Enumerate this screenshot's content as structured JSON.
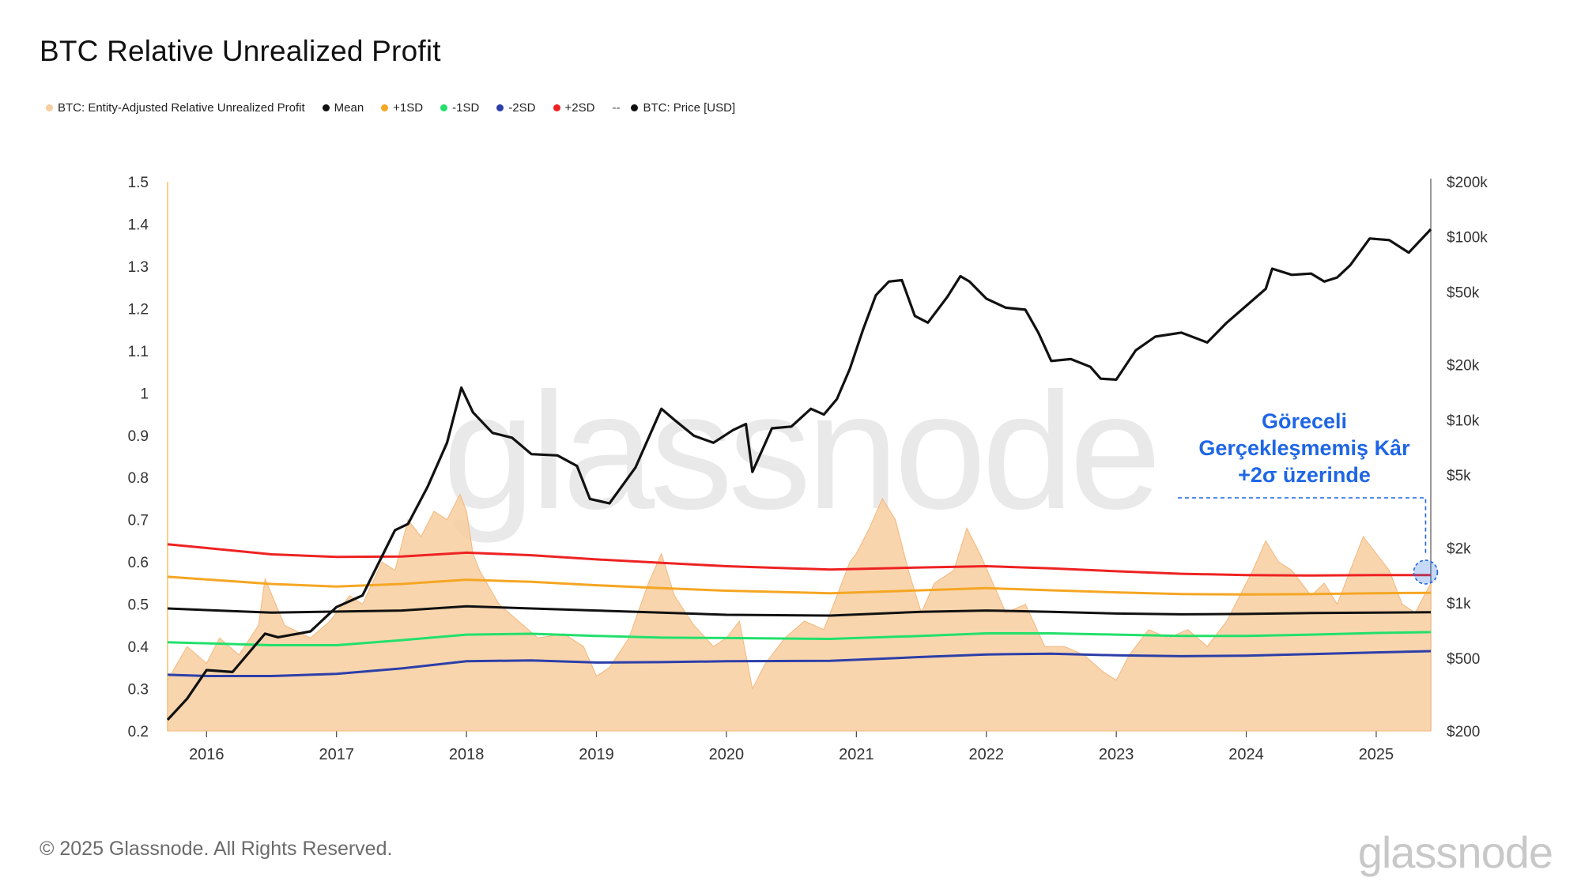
{
  "title": "BTC Relative Unrealized Profit",
  "legend": [
    {
      "label": "BTC: Entity-Adjusted Relative Unrealized Profit",
      "color": "#f8ceA0"
    },
    {
      "label": "Mean",
      "color": "#111111"
    },
    {
      "label": "+1SD",
      "color": "#f5a623"
    },
    {
      "label": "-1SD",
      "color": "#22e06a"
    },
    {
      "label": "-2SD",
      "color": "#2c3fa8"
    },
    {
      "label": "+2SD",
      "color": "#ee2222"
    },
    {
      "label": "BTC: Price [USD]",
      "color": "#111111",
      "prefix": "--"
    }
  ],
  "annotation": {
    "line1": "Göreceli",
    "line2": "Gerçekleşmemiş Kâr",
    "line3": "+2σ üzerinde",
    "color": "#1f66e5"
  },
  "footer": "© 2025 Glassnode. All Rights Reserved.",
  "brand": "glassnode",
  "watermark": "glassnode",
  "chart_data": {
    "type": "area",
    "title": "BTC Relative Unrealized Profit",
    "xlabel": "",
    "ylabel": "",
    "xlim": [
      2015.7,
      2025.42
    ],
    "ylim": [
      0.2,
      1.5
    ],
    "y_ticks": [
      "1.5",
      "1.4",
      "1.3",
      "1.2",
      "1.1",
      "1",
      "0.9",
      "0.8",
      "0.7",
      "0.6",
      "0.5",
      "0.4",
      "0.3",
      "0.2"
    ],
    "y_tick_values": [
      1.5,
      1.4,
      1.3,
      1.2,
      1.1,
      1.0,
      0.9,
      0.8,
      0.7,
      0.6,
      0.5,
      0.4,
      0.3,
      0.2
    ],
    "x_ticks": [
      "2016",
      "2017",
      "2018",
      "2019",
      "2020",
      "2021",
      "2022",
      "2023",
      "2024",
      "2025"
    ],
    "x_tick_values": [
      2016,
      2017,
      2018,
      2019,
      2020,
      2021,
      2022,
      2023,
      2024,
      2025
    ],
    "y2_ticks": [
      "$200k",
      "$100k",
      "$50k",
      "$20k",
      "$10k",
      "$5k",
      "$2k",
      "$1k",
      "$500",
      "$200"
    ],
    "y2_tick_values": [
      200000,
      100000,
      50000,
      20000,
      10000,
      5000,
      2000,
      1000,
      500,
      200
    ],
    "y2_scale": "log",
    "y2lim": [
      200,
      200000
    ],
    "series": [
      {
        "name": "BTC: Entity-Adjusted Relative Unrealized Profit",
        "kind": "area",
        "color": "#f8cea0",
        "x": [
          2015.7,
          2015.85,
          2016.0,
          2016.1,
          2016.25,
          2016.4,
          2016.45,
          2016.6,
          2016.8,
          2016.95,
          2017.1,
          2017.2,
          2017.35,
          2017.45,
          2017.55,
          2017.65,
          2017.75,
          2017.85,
          2017.95,
          2018.0,
          2018.05,
          2018.1,
          2018.25,
          2018.4,
          2018.55,
          2018.75,
          2018.9,
          2019.0,
          2019.1,
          2019.25,
          2019.4,
          2019.5,
          2019.6,
          2019.75,
          2019.9,
          2020.0,
          2020.1,
          2020.2,
          2020.3,
          2020.45,
          2020.6,
          2020.75,
          2020.85,
          2020.95,
          2021.0,
          2021.1,
          2021.2,
          2021.3,
          2021.4,
          2021.5,
          2021.6,
          2021.75,
          2021.85,
          2021.95,
          2022.05,
          2022.15,
          2022.3,
          2022.45,
          2022.6,
          2022.75,
          2022.9,
          2023.0,
          2023.1,
          2023.25,
          2023.4,
          2023.55,
          2023.7,
          2023.85,
          2023.95,
          2024.05,
          2024.15,
          2024.25,
          2024.35,
          2024.5,
          2024.6,
          2024.7,
          2024.8,
          2024.9,
          2025.0,
          2025.1,
          2025.2,
          2025.3,
          2025.42
        ],
        "values": [
          0.32,
          0.4,
          0.36,
          0.42,
          0.38,
          0.45,
          0.56,
          0.45,
          0.42,
          0.46,
          0.52,
          0.5,
          0.6,
          0.58,
          0.7,
          0.66,
          0.72,
          0.7,
          0.76,
          0.72,
          0.62,
          0.58,
          0.5,
          0.46,
          0.42,
          0.43,
          0.4,
          0.33,
          0.35,
          0.42,
          0.55,
          0.62,
          0.52,
          0.45,
          0.4,
          0.42,
          0.46,
          0.3,
          0.36,
          0.42,
          0.46,
          0.44,
          0.52,
          0.6,
          0.62,
          0.68,
          0.75,
          0.7,
          0.58,
          0.48,
          0.55,
          0.58,
          0.68,
          0.62,
          0.55,
          0.48,
          0.5,
          0.4,
          0.4,
          0.38,
          0.34,
          0.32,
          0.38,
          0.44,
          0.42,
          0.44,
          0.4,
          0.46,
          0.52,
          0.58,
          0.65,
          0.6,
          0.58,
          0.52,
          0.55,
          0.5,
          0.58,
          0.66,
          0.62,
          0.58,
          0.5,
          0.48,
          0.55
        ]
      },
      {
        "name": "Mean",
        "kind": "line",
        "color": "#111111",
        "x": [
          2015.7,
          2016.5,
          2017.5,
          2018.0,
          2018.5,
          2019.0,
          2019.5,
          2020.0,
          2020.8,
          2021.5,
          2022.0,
          2022.5,
          2023.0,
          2023.5,
          2024.0,
          2024.5,
          2025.0,
          2025.42
        ],
        "values": [
          0.49,
          0.48,
          0.485,
          0.495,
          0.49,
          0.485,
          0.48,
          0.475,
          0.473,
          0.482,
          0.485,
          0.482,
          0.478,
          0.476,
          0.477,
          0.479,
          0.48,
          0.481
        ]
      },
      {
        "name": "+1SD",
        "kind": "line",
        "color": "#f5a623",
        "x": [
          2015.7,
          2016.5,
          2017.0,
          2017.5,
          2018.0,
          2018.5,
          2019.0,
          2019.5,
          2020.0,
          2020.8,
          2021.5,
          2022.0,
          2022.5,
          2023.0,
          2023.5,
          2024.0,
          2024.5,
          2025.0,
          2025.42
        ],
        "values": [
          0.565,
          0.548,
          0.542,
          0.548,
          0.558,
          0.553,
          0.545,
          0.538,
          0.532,
          0.526,
          0.533,
          0.538,
          0.533,
          0.528,
          0.524,
          0.523,
          0.524,
          0.526,
          0.527
        ]
      },
      {
        "name": "+2SD",
        "kind": "line",
        "color": "#ee2222",
        "x": [
          2015.7,
          2016.5,
          2017.0,
          2017.5,
          2018.0,
          2018.5,
          2019.0,
          2019.5,
          2020.0,
          2020.8,
          2021.5,
          2022.0,
          2022.5,
          2023.0,
          2023.5,
          2024.0,
          2024.5,
          2025.0,
          2025.42
        ],
        "values": [
          0.642,
          0.618,
          0.612,
          0.613,
          0.622,
          0.616,
          0.606,
          0.598,
          0.59,
          0.582,
          0.587,
          0.59,
          0.585,
          0.578,
          0.572,
          0.569,
          0.568,
          0.569,
          0.569
        ]
      },
      {
        "name": "-1SD",
        "kind": "line",
        "color": "#22e06a",
        "x": [
          2015.7,
          2016.5,
          2017.0,
          2017.5,
          2018.0,
          2018.5,
          2019.0,
          2019.5,
          2020.0,
          2020.8,
          2021.5,
          2022.0,
          2022.5,
          2023.0,
          2023.5,
          2024.0,
          2024.5,
          2025.0,
          2025.42
        ],
        "values": [
          0.41,
          0.403,
          0.403,
          0.415,
          0.428,
          0.43,
          0.425,
          0.421,
          0.42,
          0.418,
          0.425,
          0.431,
          0.431,
          0.428,
          0.425,
          0.425,
          0.428,
          0.432,
          0.434
        ]
      },
      {
        "name": "-2SD",
        "kind": "line",
        "color": "#2c3fa8",
        "x": [
          2015.7,
          2016.0,
          2016.5,
          2017.0,
          2017.5,
          2018.0,
          2018.5,
          2019.0,
          2019.5,
          2020.0,
          2020.8,
          2021.5,
          2022.0,
          2022.5,
          2023.0,
          2023.5,
          2024.0,
          2024.5,
          2025.0,
          2025.42
        ],
        "values": [
          0.333,
          0.33,
          0.33,
          0.335,
          0.348,
          0.365,
          0.367,
          0.362,
          0.363,
          0.365,
          0.366,
          0.375,
          0.381,
          0.383,
          0.379,
          0.377,
          0.378,
          0.382,
          0.386,
          0.389
        ]
      },
      {
        "name": "BTC: Price [USD]",
        "kind": "line",
        "axis": "right",
        "color": "#111111",
        "x": [
          2015.7,
          2015.85,
          2016.0,
          2016.2,
          2016.45,
          2016.55,
          2016.8,
          2017.0,
          2017.2,
          2017.45,
          2017.55,
          2017.7,
          2017.85,
          2017.96,
          2018.05,
          2018.2,
          2018.35,
          2018.5,
          2018.7,
          2018.85,
          2018.95,
          2019.1,
          2019.3,
          2019.5,
          2019.6,
          2019.75,
          2019.9,
          2020.05,
          2020.15,
          2020.2,
          2020.35,
          2020.5,
          2020.65,
          2020.75,
          2020.85,
          2020.95,
          2021.05,
          2021.15,
          2021.25,
          2021.35,
          2021.45,
          2021.55,
          2021.7,
          2021.8,
          2021.87,
          2022.0,
          2022.15,
          2022.3,
          2022.4,
          2022.5,
          2022.65,
          2022.8,
          2022.88,
          2023.0,
          2023.15,
          2023.3,
          2023.5,
          2023.7,
          2023.85,
          2024.0,
          2024.15,
          2024.2,
          2024.35,
          2024.5,
          2024.6,
          2024.7,
          2024.8,
          2024.95,
          2025.1,
          2025.25,
          2025.42
        ],
        "values": [
          230,
          300,
          430,
          420,
          680,
          650,
          700,
          950,
          1100,
          2500,
          2700,
          4300,
          7500,
          15000,
          11000,
          8500,
          8000,
          6500,
          6400,
          5600,
          3700,
          3500,
          5500,
          11500,
          10000,
          8200,
          7500,
          8800,
          9500,
          5200,
          9000,
          9200,
          11500,
          10700,
          13000,
          19000,
          31000,
          48000,
          57000,
          58000,
          37000,
          34000,
          47000,
          61000,
          57000,
          46000,
          41000,
          40000,
          30000,
          21000,
          21500,
          19500,
          16800,
          16600,
          24000,
          28500,
          30000,
          26500,
          34000,
          42000,
          52000,
          67000,
          62000,
          63000,
          57000,
          60000,
          70000,
          98000,
          96000,
          82000,
          110000
        ]
      }
    ]
  }
}
